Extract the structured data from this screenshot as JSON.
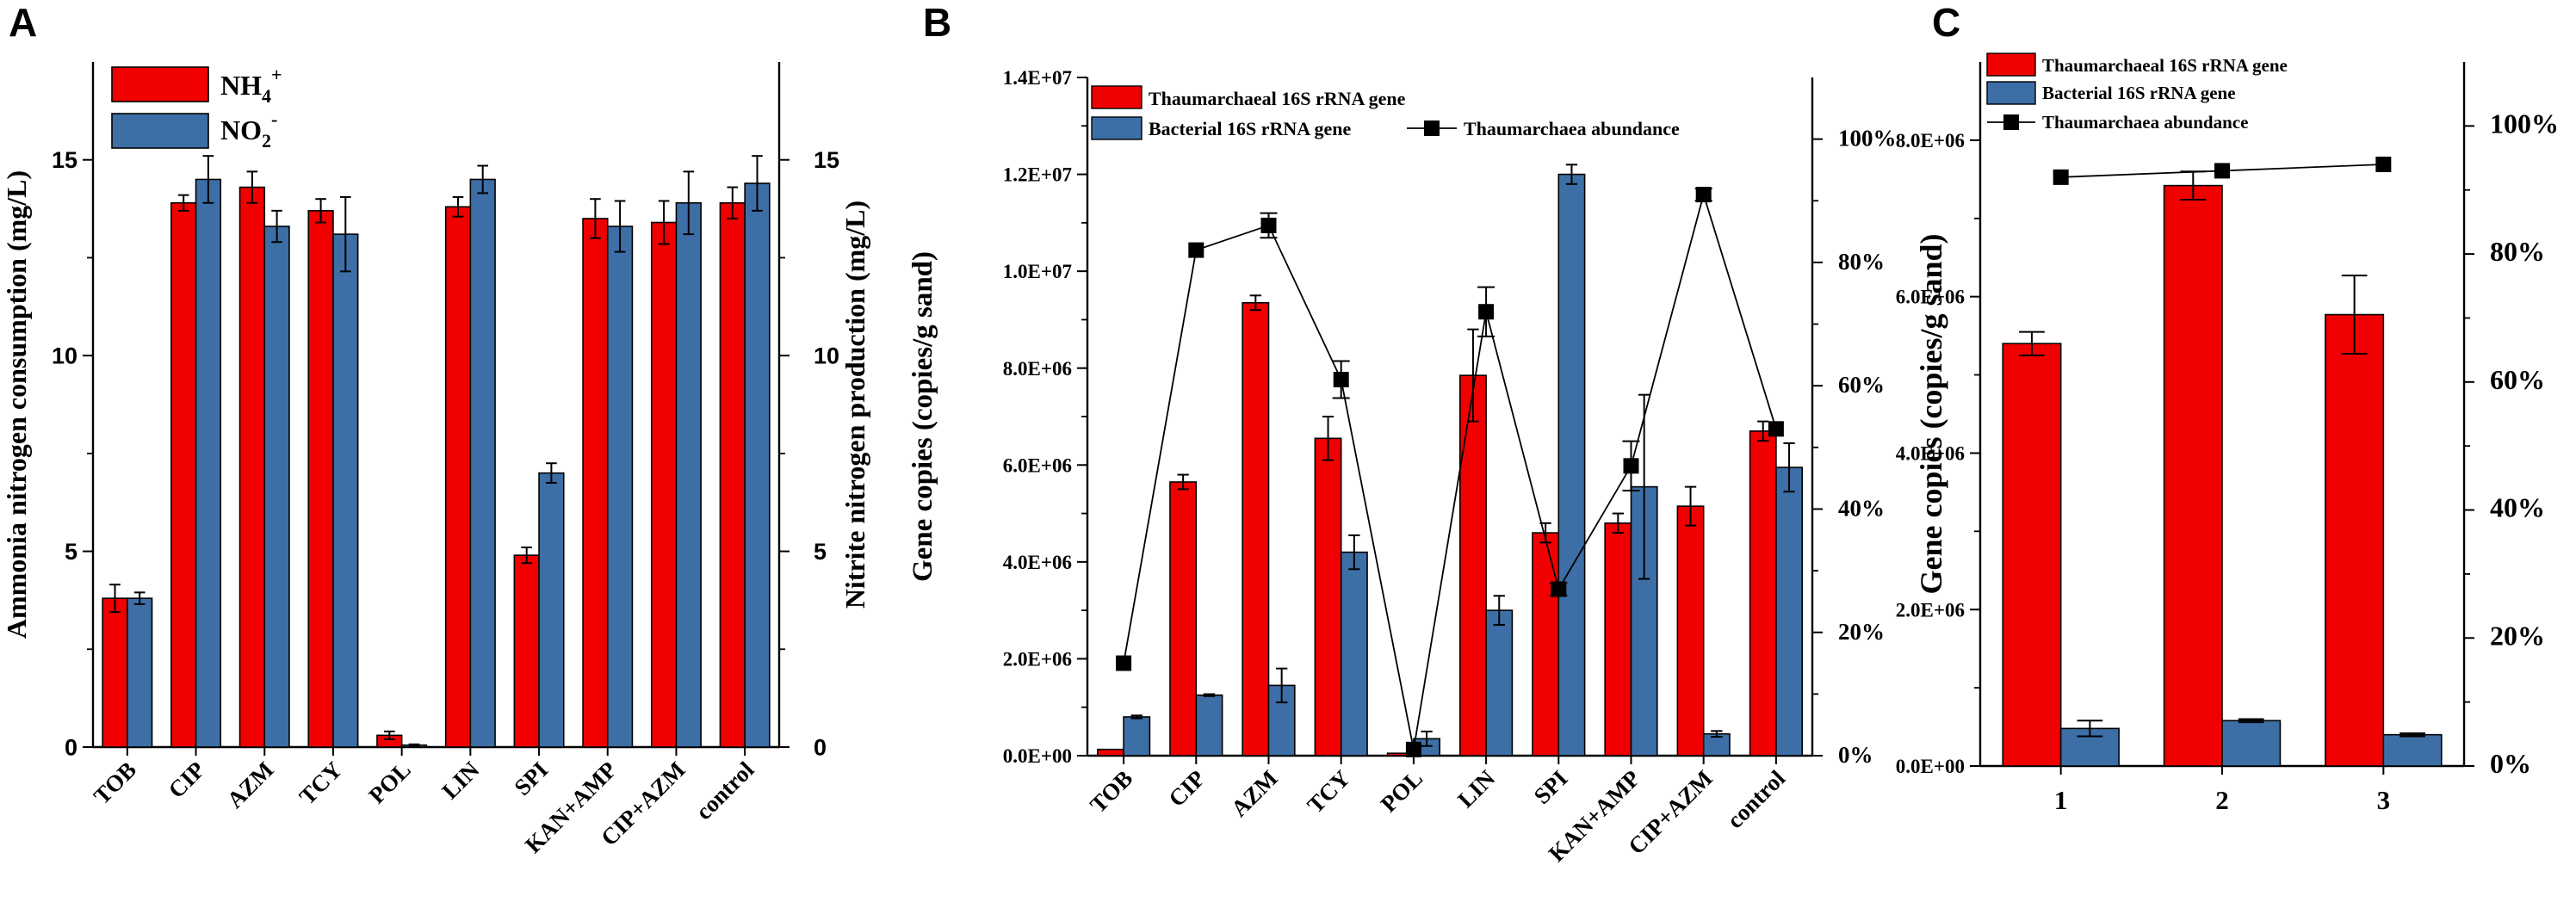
{
  "chart_data": [
    {
      "panel": "A",
      "type": "bar",
      "categories": [
        "TOB",
        "CIP",
        "AZM",
        "TCY",
        "POL",
        "LIN",
        "SPI",
        "KAN+AMP",
        "CIP+AZM",
        "control"
      ],
      "series": [
        {
          "name": "NH4+",
          "label_main": "NH",
          "label_sub": "4",
          "label_sup": "+",
          "color": "#f00000",
          "axis": "left",
          "values": [
            3.8,
            13.9,
            14.3,
            13.7,
            0.3,
            13.8,
            4.9,
            13.5,
            13.4,
            13.9
          ],
          "errors": [
            0.35,
            0.2,
            0.4,
            0.3,
            0.1,
            0.25,
            0.2,
            0.5,
            0.55,
            0.4
          ]
        },
        {
          "name": "NO2-",
          "label_main": "NO",
          "label_sub": "2",
          "label_sup": "-",
          "color": "#3d6ea6",
          "axis": "right",
          "values": [
            3.8,
            14.5,
            13.3,
            13.1,
            0.05,
            14.5,
            7.0,
            13.3,
            13.9,
            14.4
          ],
          "errors": [
            0.15,
            0.6,
            0.4,
            0.95,
            0.02,
            0.35,
            0.25,
            0.65,
            0.8,
            0.7
          ]
        }
      ],
      "ylabel": "Ammonia nitrogen consumption (mg/L)",
      "y2label": "Nitrite nitrogen production (mg/L)",
      "ylim": [
        0,
        17.5
      ],
      "y2lim": [
        0,
        17.5
      ],
      "yticks": [
        0,
        5,
        10,
        15
      ],
      "ytick_labels": [
        "0",
        "5",
        "10",
        "15"
      ],
      "y2ticks": [
        0,
        5,
        10,
        15
      ],
      "y2tick_labels": [
        "0",
        "5",
        "10",
        "15"
      ],
      "legend": "top-left"
    },
    {
      "panel": "B",
      "type": "bar",
      "categories": [
        "TOB",
        "CIP",
        "AZM",
        "TCY",
        "POL",
        "LIN",
        "SPI",
        "KAN+AMP",
        "CIP+AZM",
        "control"
      ],
      "series": [
        {
          "name": "Thaumarchaeal 16S rRNA gene",
          "color": "#f00000",
          "kind": "bar",
          "axis": "left",
          "values": [
            130000,
            5650000,
            9350000,
            6550000,
            50000,
            7850000,
            4600000,
            4800000,
            5150000,
            6700000
          ],
          "errors": [
            0,
            150000,
            150000,
            450000,
            0,
            950000,
            200000,
            200000,
            400000,
            200000
          ]
        },
        {
          "name": "Bacterial 16S rRNA gene",
          "color": "#3d6ea6",
          "kind": "bar",
          "axis": "left",
          "values": [
            800000,
            1250000,
            1450000,
            4200000,
            350000,
            3000000,
            12000000,
            5550000,
            450000,
            5950000
          ],
          "errors": [
            30000,
            20000,
            350000,
            350000,
            150000,
            300000,
            200000,
            1900000,
            60000,
            500000
          ]
        },
        {
          "name": "Thaumarchaea abundance",
          "kind": "line",
          "axis": "right",
          "values": [
            15,
            82,
            86,
            61,
            1,
            72,
            27,
            47,
            91,
            53
          ],
          "errors": [
            0,
            0,
            2,
            3,
            0,
            4,
            1,
            4,
            1,
            0
          ]
        }
      ],
      "ylabel": "Gene copies (copies/g sand)",
      "ylim": [
        0,
        14000000
      ],
      "y2lim": [
        0,
        110
      ],
      "yticks": [
        0,
        2000000,
        4000000,
        6000000,
        8000000,
        10000000,
        12000000,
        14000000
      ],
      "ytick_labels": [
        "0.0E+00",
        "2.0E+06",
        "4.0E+06",
        "6.0E+06",
        "8.0E+06",
        "1.0E+07",
        "1.2E+07",
        "1.4E+07"
      ],
      "y2ticks": [
        0,
        20,
        40,
        60,
        80,
        100
      ],
      "y2tick_labels": [
        "0%",
        "20%",
        "40%",
        "60%",
        "80%",
        "100%"
      ],
      "legend": "top-left"
    },
    {
      "panel": "C",
      "type": "bar",
      "categories": [
        "1",
        "2",
        "3"
      ],
      "series": [
        {
          "name": "Thaumarchaeal 16S rRNA gene",
          "color": "#f00000",
          "kind": "bar",
          "axis": "left",
          "values": [
            5400000,
            7420000,
            5770000
          ],
          "errors": [
            150000,
            180000,
            500000
          ]
        },
        {
          "name": "Bacterial 16S rRNA gene",
          "color": "#3d6ea6",
          "kind": "bar",
          "axis": "left",
          "values": [
            480000,
            580000,
            400000
          ],
          "errors": [
            100000,
            20000,
            20000
          ]
        },
        {
          "name": "Thaumarchaea abundance",
          "kind": "line",
          "axis": "right",
          "values": [
            92,
            93,
            94
          ],
          "errors": [
            0,
            0,
            0
          ]
        }
      ],
      "ylabel": "Gene copies (copies/g sand)",
      "ylim": [
        0,
        9000000
      ],
      "y2lim": [
        0,
        110
      ],
      "yticks": [
        0,
        2000000,
        4000000,
        6000000,
        8000000
      ],
      "ytick_labels": [
        "0.0E+00",
        "2.0E+06",
        "4.0E+06",
        "6.0E+06",
        "8.0E+06"
      ],
      "y2ticks": [
        0,
        20,
        40,
        60,
        80,
        100
      ],
      "y2tick_labels": [
        "0%",
        "20%",
        "40%",
        "60%",
        "80%",
        "100%"
      ],
      "legend": "top-left"
    }
  ]
}
